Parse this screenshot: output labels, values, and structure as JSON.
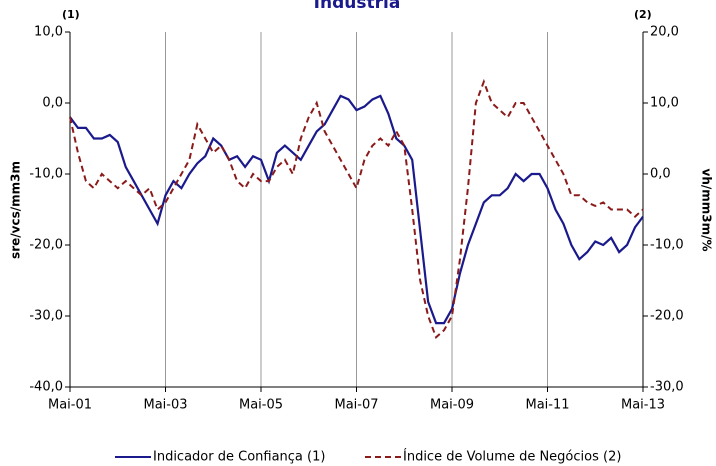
{
  "chart_data": {
    "type": "line",
    "title": "Indústria",
    "annotations": [
      "(1)",
      "(2)"
    ],
    "y_label": "sre/vcs/mm3m",
    "y2_label": "vh/mm3m/%",
    "categories": [
      "Mai-01",
      null,
      null,
      null,
      null,
      null,
      null,
      null,
      null,
      null,
      null,
      null,
      "Mai-03",
      null,
      null,
      null,
      null,
      null,
      null,
      null,
      null,
      null,
      null,
      null,
      "Mai-05",
      null,
      null,
      null,
      null,
      null,
      null,
      null,
      null,
      null,
      null,
      null,
      "Mai-07",
      null,
      null,
      null,
      null,
      null,
      null,
      null,
      null,
      null,
      null,
      null,
      "Mai-09",
      null,
      null,
      null,
      null,
      null,
      null,
      null,
      null,
      null,
      null,
      null,
      "Mai-11",
      null,
      null,
      null,
      null,
      null,
      null,
      null,
      null,
      null,
      null,
      null,
      "Mai-13"
    ],
    "series": [
      {
        "name": "Indicador de Confiança (1)",
        "color": "#1a1a8c",
        "linestyle": "solid",
        "values": [
          -2,
          -3.5,
          -3.5,
          -5,
          -5,
          -4.5,
          -5.5,
          -9,
          -11,
          -13,
          -15,
          -17,
          -13,
          -11,
          -12,
          -10,
          -8.5,
          -7.5,
          -5,
          -6,
          -8,
          -7.5,
          -9,
          -7.5,
          -8,
          -11,
          -7,
          -6,
          -7,
          -8,
          -6,
          -4,
          -3,
          -1,
          1,
          0.5,
          -1,
          -0.5,
          0.5,
          1,
          -1.5,
          -5,
          -6,
          -8,
          -18,
          -28,
          -31,
          -31,
          -29,
          -24,
          -20,
          -17,
          -14,
          -13,
          -13,
          -12,
          -10,
          -11,
          -10,
          -10,
          -12,
          -15,
          -17,
          -20,
          -22,
          -21,
          -19.5,
          -20,
          -19,
          -21,
          -20,
          -17.5,
          -16
        ]
      },
      {
        "name": "Índice de Volume de Negócios (2)",
        "color": "#8b1a1a",
        "linestyle": "dashed",
        "axis": "y2",
        "values": [
          8,
          3,
          -1,
          -2,
          0,
          -1,
          -2,
          -1,
          -2,
          -3,
          -2,
          -5,
          -4,
          -2,
          0,
          2,
          7,
          5,
          3,
          4,
          2,
          -1,
          -2,
          0,
          -1,
          -1,
          1,
          2,
          0,
          5,
          8,
          10,
          6,
          4,
          2,
          0,
          -2,
          2,
          4,
          5,
          4,
          6,
          4,
          -5,
          -15,
          -20,
          -23,
          -22,
          -20,
          -12,
          -2,
          10,
          13,
          10,
          9,
          8,
          10,
          10,
          8,
          6,
          4,
          2,
          0,
          -3,
          -3,
          -4,
          -4.5,
          -4,
          -5,
          -5,
          -5,
          -6,
          -5
        ]
      }
    ],
    "ylim": [
      -40,
      10
    ],
    "yticks": [
      {
        "value": -40,
        "label": "-40,0"
      },
      {
        "value": -30,
        "label": "-30,0"
      },
      {
        "value": -20,
        "label": "-20,0"
      },
      {
        "value": -10,
        "label": "-10,0"
      },
      {
        "value": 0,
        "label": "0,0"
      },
      {
        "value": 10,
        "label": "10,0"
      }
    ],
    "y2lim": [
      -30,
      20
    ],
    "y2ticks": [
      {
        "value": -30,
        "label": "-30,0"
      },
      {
        "value": -20,
        "label": "-20,0"
      },
      {
        "value": -10,
        "label": "-10,0"
      },
      {
        "value": 0,
        "label": "0,0"
      },
      {
        "value": 10,
        "label": "10,0"
      },
      {
        "value": 20,
        "label": "20,0"
      }
    ],
    "xgrid": true,
    "legend": "bottom"
  }
}
